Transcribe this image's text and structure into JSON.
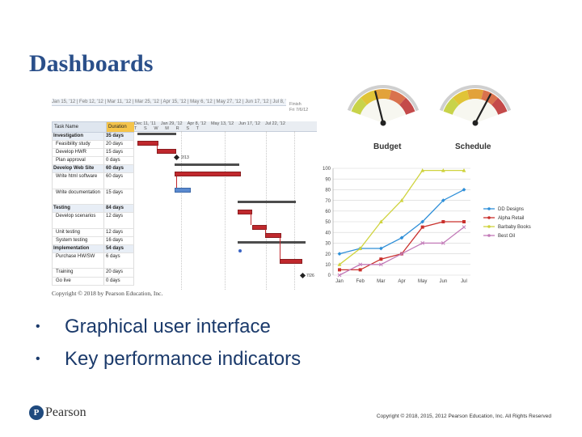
{
  "slide": {
    "title": "Dashboards",
    "bullets": [
      "Graphical user interface",
      "Key performance indicators"
    ],
    "figure_copyright": "Copyright © 2018 by Pearson Education, Inc.",
    "footer_copyright": "Copyright © 2018, 2015, 2012 Pearson Education, Inc. All Rights Reserved",
    "logo_text": "Pearson",
    "logo_mark": "P"
  },
  "gantt": {
    "top_timeline": "Jan 15, '12 | Feb 12, '12 | Mar 11, '12 | Mar 25, '12 | Apr 15, '12 | May 6, '12 | May 27, '12 | Jun 17, '12 | Jul 8, '12",
    "finish_label": "Finish",
    "finish_date": "Fri 7/6/12",
    "headers": {
      "task": "Task Name",
      "duration": "Duration"
    },
    "timeline_weeks": [
      "Dec 11, '11",
      "Jan 29, '12",
      "Apr 8, '12",
      "May 13, '12",
      "Jun 17, '12",
      "Jul 22, '12"
    ],
    "timeline_days": "T S W M R S T",
    "rows": [
      {
        "name": "Investigation",
        "duration": "35 days",
        "summary": true
      },
      {
        "name": "Feasibility study",
        "duration": "20 days"
      },
      {
        "name": "Develop HWR",
        "duration": "15 days"
      },
      {
        "name": "Plan approval",
        "duration": "0 days"
      },
      {
        "name": "Develop Web Site",
        "duration": "60 days",
        "summary": true
      },
      {
        "name": "Write html software",
        "duration": "60 days",
        "tall": true
      },
      {
        "name": "Write documentation",
        "duration": "15 days",
        "tall": true
      },
      {
        "name": "Testing",
        "duration": "84 days",
        "summary": true
      },
      {
        "name": "Develop scenarios",
        "duration": "12 days",
        "tall": true
      },
      {
        "name": "Unit testing",
        "duration": "12 days"
      },
      {
        "name": "System testing",
        "duration": "16 days"
      },
      {
        "name": "Implementation",
        "duration": "54 days",
        "summary": true
      },
      {
        "name": "Purchase HW/SW",
        "duration": "6 days",
        "tall": true
      },
      {
        "name": "Training",
        "duration": "20 days"
      },
      {
        "name": "Go live",
        "duration": "0 days"
      }
    ],
    "milestones": [
      "2/13",
      "7/26"
    ]
  },
  "gauges": [
    {
      "label": "Budget",
      "needle_fraction": 0.4
    },
    {
      "label": "Schedule",
      "needle_fraction": 0.7
    }
  ],
  "chart_data": {
    "type": "line",
    "x": [
      "Jan",
      "Feb",
      "Mar",
      "Apr",
      "May",
      "Jun",
      "Jul"
    ],
    "ylim": [
      0,
      100
    ],
    "yticks": [
      0,
      10,
      20,
      30,
      40,
      50,
      60,
      70,
      80,
      90,
      100
    ],
    "grid": true,
    "legend": "right",
    "series": [
      {
        "name": "DD Designs",
        "values": [
          20,
          25,
          25,
          35,
          50,
          70,
          80
        ],
        "color": "#2e8fd8",
        "marker": "diamond"
      },
      {
        "name": "Alpha Retail",
        "values": [
          5,
          5,
          15,
          20,
          45,
          50,
          50
        ],
        "color": "#c9302c",
        "marker": "square"
      },
      {
        "name": "Barbaby Books",
        "values": [
          10,
          25,
          50,
          70,
          98,
          98,
          98
        ],
        "color": "#cfd33e",
        "marker": "triangle"
      },
      {
        "name": "Best Oil",
        "values": [
          0,
          10,
          10,
          20,
          30,
          30,
          45
        ],
        "color": "#c27ab8",
        "marker": "x"
      }
    ]
  }
}
